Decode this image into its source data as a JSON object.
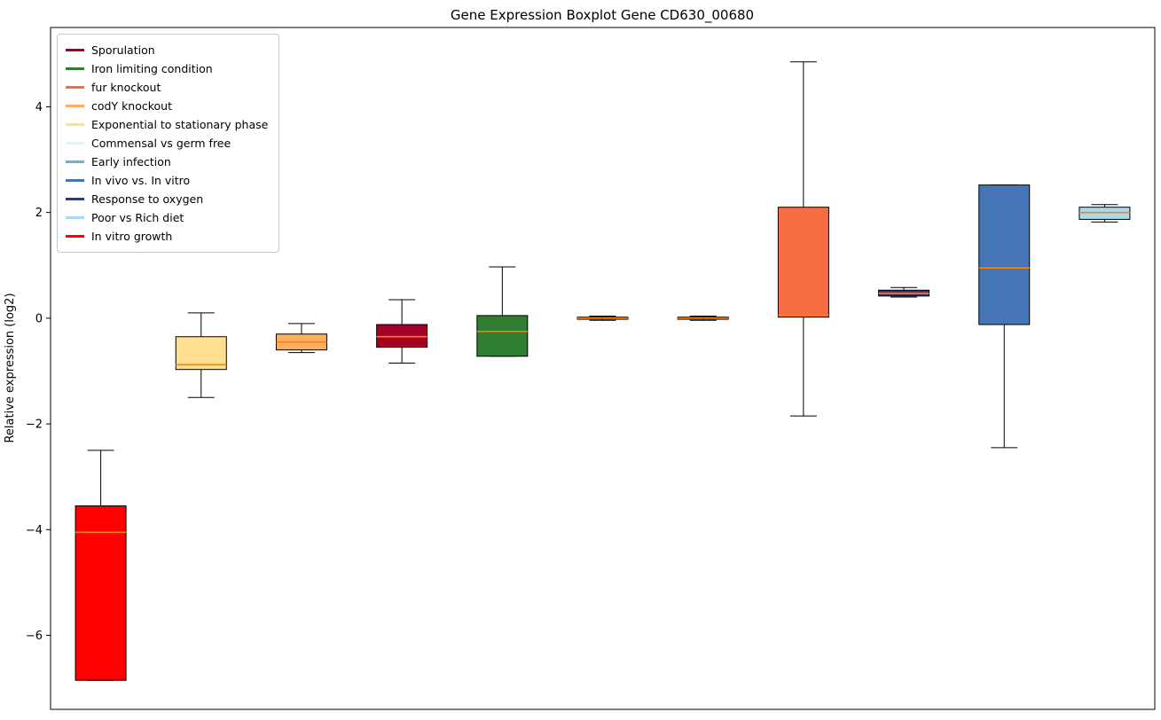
{
  "chart_data": {
    "type": "boxplot",
    "title": "Gene Expression Boxplot Gene CD630_00680",
    "ylabel": "Relative expression (log2)",
    "ylim": [
      -7.4,
      5.5
    ],
    "yticks": [
      4,
      2,
      0,
      -2,
      -4,
      -6
    ],
    "grid": false,
    "legend_position": "upper left",
    "median_color": "#ff7f0e",
    "box_edge_color": "#000000",
    "legend": [
      {
        "label": "Sporulation",
        "color": "#a50026"
      },
      {
        "label": "Iron limiting condition",
        "color": "#2e7d32"
      },
      {
        "label": "fur knockout",
        "color": "#f46d43"
      },
      {
        "label": "codY knockout",
        "color": "#fdae61"
      },
      {
        "label": "Exponential to stationary phase",
        "color": "#fee090"
      },
      {
        "label": "Commensal vs germ free",
        "color": "#e0f3f8"
      },
      {
        "label": "Early infection",
        "color": "#74add1"
      },
      {
        "label": "In vivo vs. In vitro",
        "color": "#4575b4"
      },
      {
        "label": "Response to oxygen",
        "color": "#313695"
      },
      {
        "label": "Poor vs Rich diet",
        "color": "#abd9e9"
      },
      {
        "label": "In vitro growth",
        "color": "#ff0000"
      }
    ],
    "boxes": [
      {
        "label": "In vitro growth",
        "color": "#ff0000",
        "whisker_low": -6.85,
        "q1": -6.85,
        "median": -4.05,
        "q3": -3.55,
        "whisker_high": -2.5
      },
      {
        "label": "Exponential to stationary phase",
        "color": "#fee090",
        "whisker_low": -1.5,
        "q1": -0.97,
        "median": -0.88,
        "q3": -0.35,
        "whisker_high": 0.1
      },
      {
        "label": "codY knockout",
        "color": "#fdae61",
        "whisker_low": -0.65,
        "q1": -0.6,
        "median": -0.45,
        "q3": -0.3,
        "whisker_high": -0.1
      },
      {
        "label": "Sporulation",
        "color": "#a50026",
        "whisker_low": -0.85,
        "q1": -0.55,
        "median": -0.35,
        "q3": -0.12,
        "whisker_high": 0.35
      },
      {
        "label": "Iron limiting condition",
        "color": "#2e7d32",
        "whisker_low": -0.72,
        "q1": -0.72,
        "median": -0.25,
        "q3": 0.05,
        "whisker_high": 0.97
      },
      {
        "label": "Commensal vs germ free",
        "color": "#e0f3f8",
        "whisker_low": -0.04,
        "q1": -0.02,
        "median": 0.0,
        "q3": 0.02,
        "whisker_high": 0.04
      },
      {
        "label": "Early infection",
        "color": "#74add1",
        "whisker_low": -0.04,
        "q1": -0.02,
        "median": 0.0,
        "q3": 0.02,
        "whisker_high": 0.04
      },
      {
        "label": "fur knockout",
        "color": "#f46d43",
        "whisker_low": -1.85,
        "q1": 0.02,
        "median": 0.06,
        "q3": 2.1,
        "whisker_high": 4.85
      },
      {
        "label": "Response to oxygen",
        "color": "#313695",
        "whisker_low": 0.4,
        "q1": 0.42,
        "median": 0.47,
        "q3": 0.53,
        "whisker_high": 0.58
      },
      {
        "label": "In vivo vs. In vitro",
        "color": "#4575b4",
        "whisker_low": -2.45,
        "q1": -0.12,
        "median": 0.95,
        "q3": 2.52,
        "whisker_high": 2.52
      },
      {
        "label": "Poor vs Rich diet",
        "color": "#abd9e9",
        "whisker_low": 1.82,
        "q1": 1.87,
        "median": 2.0,
        "q3": 2.1,
        "whisker_high": 2.15
      }
    ]
  }
}
